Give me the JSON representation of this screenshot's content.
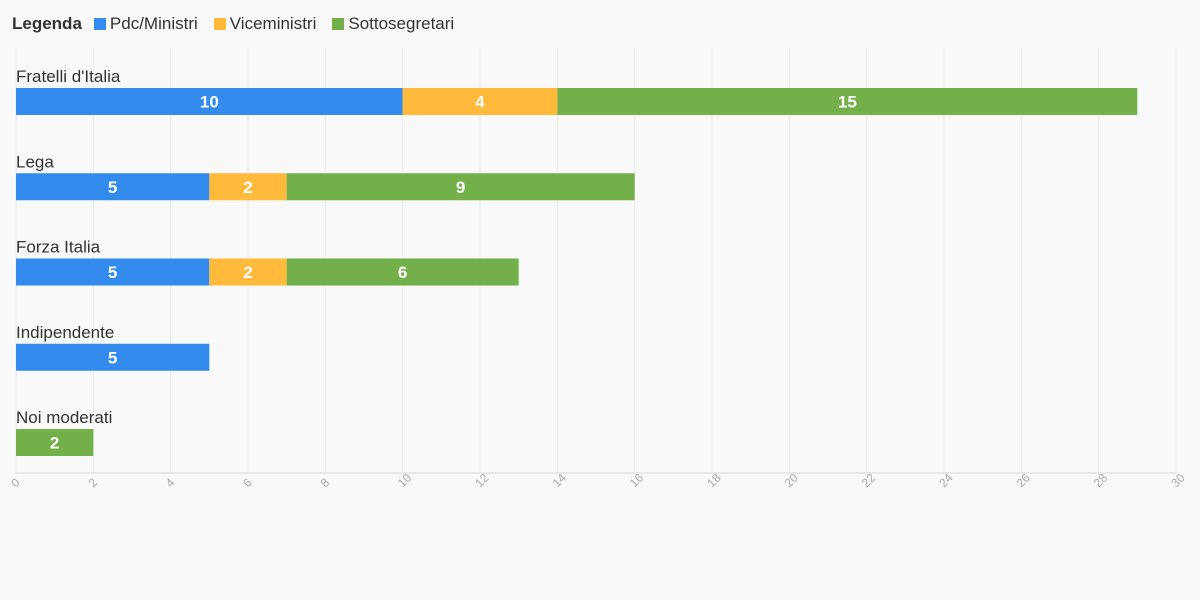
{
  "chart_data": {
    "type": "bar",
    "orientation": "horizontal",
    "stacked": true,
    "legend_title": "Legenda",
    "legend_position": "top-left",
    "categories": [
      "Fratelli d'Italia",
      "Lega",
      "Forza Italia",
      "Indipendente",
      "Noi moderati"
    ],
    "series": [
      {
        "name": "Pdc/Ministri",
        "color": "#338ced",
        "values": [
          10,
          5,
          5,
          5,
          0
        ]
      },
      {
        "name": "Viceministri",
        "color": "#ffb93b",
        "values": [
          4,
          2,
          2,
          0,
          0
        ]
      },
      {
        "name": "Sottosegretari",
        "color": "#73b04a",
        "values": [
          15,
          9,
          6,
          0,
          2
        ]
      }
    ],
    "xlim": [
      0,
      30
    ],
    "xticks": [
      0,
      2,
      4,
      6,
      8,
      10,
      12,
      14,
      16,
      18,
      20,
      22,
      24,
      26,
      28,
      30
    ],
    "grid": true,
    "title": "",
    "xlabel": "",
    "ylabel": ""
  }
}
